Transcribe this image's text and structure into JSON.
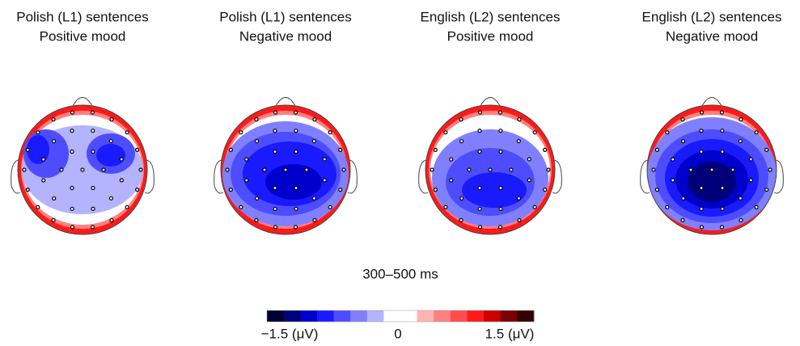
{
  "panels": [
    {
      "title": [
        "Polish (L1) sentences",
        "Positive mood"
      ]
    },
    {
      "title": [
        "Polish (L1) sentences",
        "Negative mood"
      ]
    },
    {
      "title": [
        "English (L2) sentences",
        "Positive mood"
      ]
    },
    {
      "title": [
        "English (L2) sentences",
        "Negative mood"
      ]
    }
  ],
  "time_window": "300–500 ms",
  "colorbar": {
    "min_label": "−1.5 (μV)",
    "mid_label": "0",
    "max_label": "1.5 (μV)",
    "colors": [
      "#000033",
      "#00007a",
      "#0000cc",
      "#1a1aff",
      "#4d4dff",
      "#8080ff",
      "#b3b3ff",
      "#ffffff",
      "#ffffff",
      "#ffb3b3",
      "#ff8080",
      "#ff4d4d",
      "#ff1a1a",
      "#cc0000",
      "#7a0000",
      "#330000"
    ]
  }
}
